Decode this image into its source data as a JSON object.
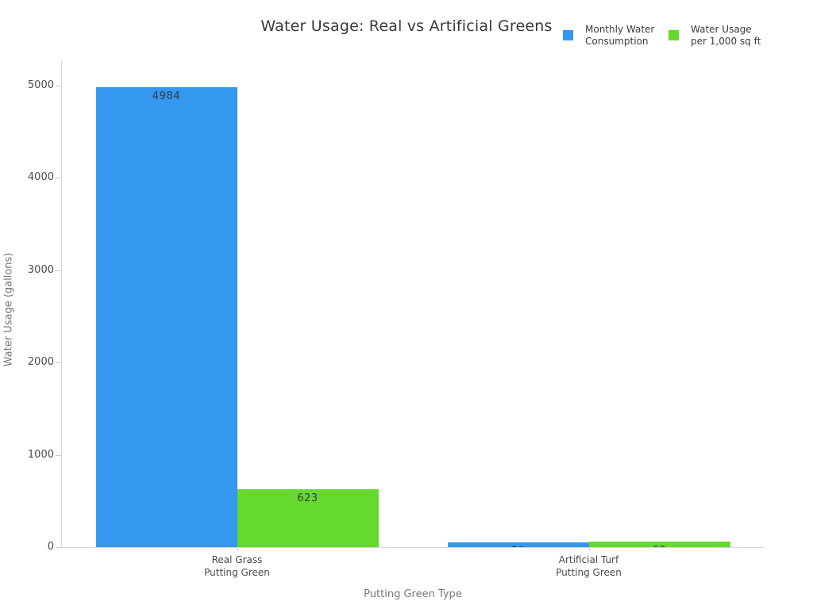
{
  "chart_data": {
    "type": "bar",
    "title": "Water Usage: Real vs Artificial Greens",
    "xlabel": "Putting Green Type",
    "ylabel": "Water Usage (gallons)",
    "categories": [
      "Real Grass\nPutting Green",
      "Artificial Turf\nPutting Green"
    ],
    "series": [
      {
        "name": "Monthly Water\nConsumption",
        "color": "#3497f0",
        "values": [
          4984,
          52
        ]
      },
      {
        "name": "Water Usage\nper 1,000 sq ft",
        "color": "#65d92e",
        "values": [
          623,
          62
        ]
      }
    ],
    "bar_value_labels": [
      "4984",
      "623"
    ],
    "ylim": [
      0,
      5000
    ],
    "yticks": [
      0,
      1000,
      2000,
      3000,
      4000,
      5000
    ],
    "grid": false,
    "legend_position": "top-right",
    "background": "#ffffff",
    "axis_line_color": "#d9d9d9"
  }
}
